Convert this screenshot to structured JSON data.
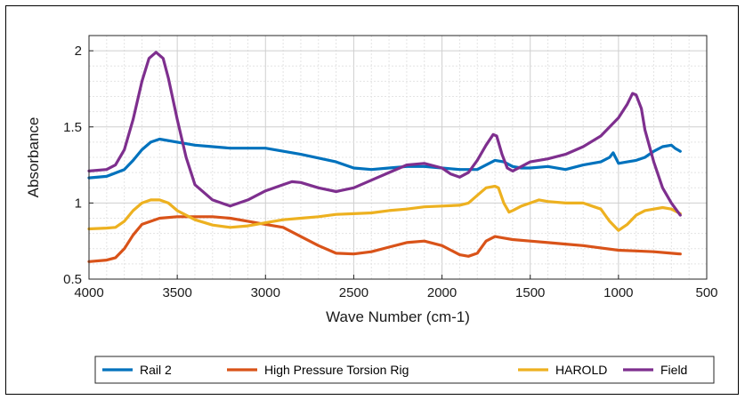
{
  "chart_data": {
    "type": "line",
    "title": "",
    "xlabel": "Wave Number (cm-1)",
    "ylabel": "Absorbance",
    "xlim": [
      4000,
      500
    ],
    "ylim": [
      0.5,
      2.1
    ],
    "x_reversed": true,
    "xticks": [
      4000,
      3500,
      3000,
      2500,
      2000,
      1500,
      1000,
      500
    ],
    "yticks": [
      0.5,
      1,
      1.5,
      2
    ],
    "ytick_labels": [
      "0.5",
      "1",
      "1.5",
      "2"
    ],
    "grid": true,
    "legend_position": "bottom",
    "series": [
      {
        "name": "Rail 2",
        "color": "#0072BD",
        "points": [
          [
            4000,
            1.165
          ],
          [
            3900,
            1.175
          ],
          [
            3800,
            1.22
          ],
          [
            3750,
            1.28
          ],
          [
            3700,
            1.35
          ],
          [
            3650,
            1.4
          ],
          [
            3600,
            1.42
          ],
          [
            3500,
            1.4
          ],
          [
            3400,
            1.38
          ],
          [
            3300,
            1.37
          ],
          [
            3200,
            1.36
          ],
          [
            3000,
            1.36
          ],
          [
            2800,
            1.32
          ],
          [
            2600,
            1.27
          ],
          [
            2500,
            1.23
          ],
          [
            2400,
            1.22
          ],
          [
            2300,
            1.23
          ],
          [
            2200,
            1.24
          ],
          [
            2100,
            1.24
          ],
          [
            2000,
            1.23
          ],
          [
            1900,
            1.22
          ],
          [
            1800,
            1.22
          ],
          [
            1750,
            1.25
          ],
          [
            1700,
            1.28
          ],
          [
            1650,
            1.27
          ],
          [
            1600,
            1.24
          ],
          [
            1550,
            1.23
          ],
          [
            1500,
            1.23
          ],
          [
            1400,
            1.24
          ],
          [
            1300,
            1.22
          ],
          [
            1200,
            1.25
          ],
          [
            1100,
            1.27
          ],
          [
            1050,
            1.3
          ],
          [
            1030,
            1.33
          ],
          [
            1000,
            1.26
          ],
          [
            950,
            1.27
          ],
          [
            900,
            1.28
          ],
          [
            850,
            1.3
          ],
          [
            800,
            1.34
          ],
          [
            750,
            1.37
          ],
          [
            700,
            1.38
          ],
          [
            680,
            1.36
          ],
          [
            650,
            1.34
          ]
        ]
      },
      {
        "name": "High Pressure Torsion Rig",
        "color": "#D95319",
        "points": [
          [
            4000,
            0.615
          ],
          [
            3900,
            0.625
          ],
          [
            3850,
            0.64
          ],
          [
            3800,
            0.7
          ],
          [
            3750,
            0.79
          ],
          [
            3700,
            0.86
          ],
          [
            3600,
            0.9
          ],
          [
            3500,
            0.91
          ],
          [
            3400,
            0.91
          ],
          [
            3300,
            0.91
          ],
          [
            3200,
            0.9
          ],
          [
            3100,
            0.88
          ],
          [
            3000,
            0.86
          ],
          [
            2900,
            0.84
          ],
          [
            2800,
            0.78
          ],
          [
            2700,
            0.72
          ],
          [
            2600,
            0.67
          ],
          [
            2500,
            0.665
          ],
          [
            2400,
            0.68
          ],
          [
            2300,
            0.71
          ],
          [
            2200,
            0.74
          ],
          [
            2100,
            0.75
          ],
          [
            2000,
            0.72
          ],
          [
            1900,
            0.66
          ],
          [
            1850,
            0.65
          ],
          [
            1800,
            0.67
          ],
          [
            1750,
            0.75
          ],
          [
            1700,
            0.78
          ],
          [
            1650,
            0.77
          ],
          [
            1600,
            0.76
          ],
          [
            1500,
            0.75
          ],
          [
            1400,
            0.74
          ],
          [
            1300,
            0.73
          ],
          [
            1200,
            0.72
          ],
          [
            1100,
            0.705
          ],
          [
            1000,
            0.69
          ],
          [
            900,
            0.685
          ],
          [
            800,
            0.68
          ],
          [
            700,
            0.67
          ],
          [
            650,
            0.665
          ]
        ]
      },
      {
        "name": "HAROLD",
        "color": "#EDB120",
        "points": [
          [
            4000,
            0.83
          ],
          [
            3900,
            0.835
          ],
          [
            3850,
            0.84
          ],
          [
            3800,
            0.88
          ],
          [
            3750,
            0.95
          ],
          [
            3700,
            1.0
          ],
          [
            3650,
            1.02
          ],
          [
            3600,
            1.02
          ],
          [
            3550,
            1.0
          ],
          [
            3500,
            0.95
          ],
          [
            3400,
            0.89
          ],
          [
            3300,
            0.855
          ],
          [
            3200,
            0.84
          ],
          [
            3100,
            0.85
          ],
          [
            3000,
            0.87
          ],
          [
            2900,
            0.89
          ],
          [
            2800,
            0.9
          ],
          [
            2700,
            0.91
          ],
          [
            2600,
            0.925
          ],
          [
            2500,
            0.93
          ],
          [
            2400,
            0.935
          ],
          [
            2300,
            0.95
          ],
          [
            2200,
            0.96
          ],
          [
            2100,
            0.975
          ],
          [
            2000,
            0.98
          ],
          [
            1900,
            0.985
          ],
          [
            1850,
            1.0
          ],
          [
            1800,
            1.05
          ],
          [
            1750,
            1.1
          ],
          [
            1700,
            1.11
          ],
          [
            1680,
            1.1
          ],
          [
            1650,
            1.0
          ],
          [
            1620,
            0.94
          ],
          [
            1600,
            0.95
          ],
          [
            1550,
            0.98
          ],
          [
            1500,
            1.0
          ],
          [
            1450,
            1.02
          ],
          [
            1400,
            1.01
          ],
          [
            1300,
            1.0
          ],
          [
            1200,
            1.0
          ],
          [
            1150,
            0.98
          ],
          [
            1100,
            0.96
          ],
          [
            1050,
            0.88
          ],
          [
            1000,
            0.82
          ],
          [
            950,
            0.86
          ],
          [
            900,
            0.92
          ],
          [
            850,
            0.95
          ],
          [
            800,
            0.96
          ],
          [
            750,
            0.97
          ],
          [
            700,
            0.96
          ],
          [
            650,
            0.93
          ]
        ]
      },
      {
        "name": "Field",
        "color": "#7E2F8E",
        "points": [
          [
            4000,
            1.21
          ],
          [
            3900,
            1.22
          ],
          [
            3850,
            1.25
          ],
          [
            3800,
            1.35
          ],
          [
            3750,
            1.55
          ],
          [
            3700,
            1.8
          ],
          [
            3660,
            1.95
          ],
          [
            3620,
            1.99
          ],
          [
            3580,
            1.95
          ],
          [
            3550,
            1.82
          ],
          [
            3500,
            1.55
          ],
          [
            3450,
            1.3
          ],
          [
            3400,
            1.12
          ],
          [
            3300,
            1.02
          ],
          [
            3200,
            0.98
          ],
          [
            3100,
            1.02
          ],
          [
            3000,
            1.08
          ],
          [
            2900,
            1.12
          ],
          [
            2850,
            1.14
          ],
          [
            2800,
            1.135
          ],
          [
            2700,
            1.1
          ],
          [
            2600,
            1.075
          ],
          [
            2500,
            1.1
          ],
          [
            2400,
            1.15
          ],
          [
            2300,
            1.2
          ],
          [
            2200,
            1.25
          ],
          [
            2100,
            1.26
          ],
          [
            2000,
            1.23
          ],
          [
            1950,
            1.19
          ],
          [
            1900,
            1.17
          ],
          [
            1850,
            1.2
          ],
          [
            1800,
            1.28
          ],
          [
            1750,
            1.38
          ],
          [
            1710,
            1.45
          ],
          [
            1690,
            1.44
          ],
          [
            1660,
            1.32
          ],
          [
            1630,
            1.23
          ],
          [
            1600,
            1.21
          ],
          [
            1550,
            1.24
          ],
          [
            1500,
            1.27
          ],
          [
            1400,
            1.29
          ],
          [
            1300,
            1.32
          ],
          [
            1200,
            1.37
          ],
          [
            1100,
            1.44
          ],
          [
            1000,
            1.56
          ],
          [
            950,
            1.65
          ],
          [
            920,
            1.72
          ],
          [
            900,
            1.71
          ],
          [
            870,
            1.62
          ],
          [
            850,
            1.48
          ],
          [
            800,
            1.27
          ],
          [
            750,
            1.1
          ],
          [
            700,
            1.0
          ],
          [
            650,
            0.92
          ]
        ]
      }
    ]
  }
}
